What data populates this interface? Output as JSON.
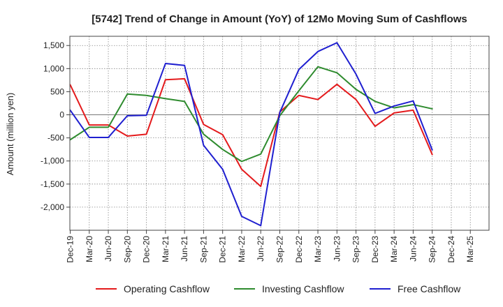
{
  "chart_data": {
    "type": "line",
    "title": "[5742]  Trend of Change in Amount (YoY) of 12Mo Moving Sum of Cashflows",
    "xlabel": "",
    "ylabel": "Amount (million yen)",
    "ylim": [
      -2500,
      1700
    ],
    "yticks": [
      1500,
      1000,
      500,
      0,
      -500,
      -1000,
      -1500,
      -2000
    ],
    "ytick_labels": [
      "1,500",
      "1,000",
      "500",
      "0",
      "-500",
      "-1,000",
      "-1,500",
      "-2,000"
    ],
    "categories": [
      "Dec-19",
      "Mar-20",
      "Jun-20",
      "Sep-20",
      "Dec-20",
      "Mar-21",
      "Jun-21",
      "Sep-21",
      "Dec-21",
      "Mar-22",
      "Jun-22",
      "Sep-22",
      "Dec-22",
      "Mar-23",
      "Jun-23",
      "Sep-23",
      "Dec-23",
      "Mar-24",
      "Jun-24",
      "Sep-24",
      "Dec-24",
      "Mar-25"
    ],
    "grid": true,
    "legend_position": "bottom",
    "series": [
      {
        "name": "Operating Cashflow",
        "color": "#e41a1c",
        "values": [
          650,
          -220,
          -220,
          -460,
          -420,
          760,
          780,
          -210,
          -430,
          -1180,
          -1550,
          60,
          420,
          330,
          660,
          330,
          -250,
          40,
          100,
          -860,
          null,
          null
        ]
      },
      {
        "name": "Investing Cashflow",
        "color": "#2e8b2e",
        "values": [
          -540,
          -270,
          -270,
          450,
          420,
          350,
          290,
          -420,
          -750,
          -1010,
          -850,
          -20,
          520,
          1040,
          910,
          550,
          290,
          150,
          220,
          130,
          null,
          null
        ]
      },
      {
        "name": "Free Cashflow",
        "color": "#1f1fd0",
        "values": [
          100,
          -490,
          -490,
          -20,
          -10,
          1110,
          1070,
          -660,
          -1180,
          -2200,
          -2400,
          50,
          980,
          1370,
          1560,
          880,
          30,
          190,
          300,
          -760,
          null,
          null
        ]
      }
    ]
  }
}
